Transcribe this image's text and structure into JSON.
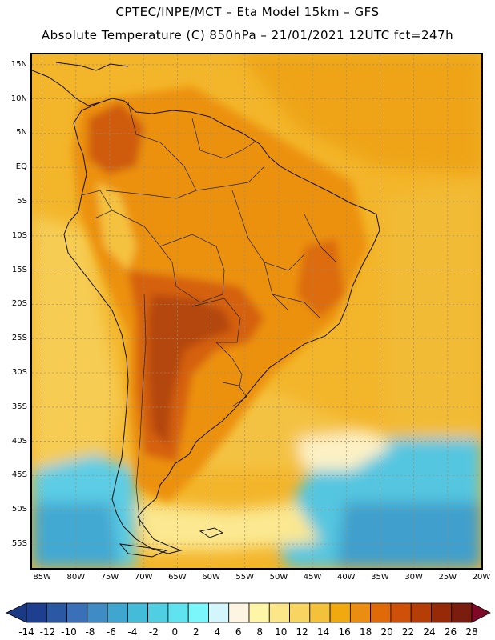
{
  "header": {
    "title_line1": "CPTEC/INPE/MCT –  Eta Model 15km – GFS",
    "title_line2": "Absolute Temperature (C) 850hPa – 21/01/2021 12UTC fct=247h"
  },
  "map": {
    "region": "South America",
    "lat_range": [
      -58.5,
      16.5
    ],
    "lon_range": [
      -86.5,
      -20
    ],
    "lat_ticks": [
      {
        "value": 15,
        "label": "15N"
      },
      {
        "value": 10,
        "label": "10N"
      },
      {
        "value": 5,
        "label": "5N"
      },
      {
        "value": 0,
        "label": "EQ"
      },
      {
        "value": -5,
        "label": "5S"
      },
      {
        "value": -10,
        "label": "10S"
      },
      {
        "value": -15,
        "label": "15S"
      },
      {
        "value": -20,
        "label": "20S"
      },
      {
        "value": -25,
        "label": "25S"
      },
      {
        "value": -30,
        "label": "30S"
      },
      {
        "value": -35,
        "label": "35S"
      },
      {
        "value": -40,
        "label": "40S"
      },
      {
        "value": -45,
        "label": "45S"
      },
      {
        "value": -50,
        "label": "50S"
      },
      {
        "value": -55,
        "label": "55S"
      }
    ],
    "lon_ticks": [
      {
        "value": -85,
        "label": "85W"
      },
      {
        "value": -80,
        "label": "80W"
      },
      {
        "value": -75,
        "label": "75W"
      },
      {
        "value": -70,
        "label": "70W"
      },
      {
        "value": -65,
        "label": "65W"
      },
      {
        "value": -60,
        "label": "60W"
      },
      {
        "value": -55,
        "label": "55W"
      },
      {
        "value": -50,
        "label": "50W"
      },
      {
        "value": -45,
        "label": "45W"
      },
      {
        "value": -40,
        "label": "40W"
      },
      {
        "value": -35,
        "label": "35W"
      },
      {
        "value": -30,
        "label": "30W"
      },
      {
        "value": -25,
        "label": "25W"
      },
      {
        "value": -20,
        "label": "20W"
      }
    ]
  },
  "colorbar": {
    "levels": [
      -14,
      -12,
      -10,
      -8,
      -6,
      -4,
      -2,
      0,
      2,
      4,
      6,
      8,
      10,
      12,
      14,
      16,
      18,
      20,
      22,
      24,
      26,
      28
    ],
    "labels": [
      "-14",
      "-12",
      "-10",
      "-8",
      "-6",
      "-4",
      "-2",
      "0",
      "2",
      "4",
      "6",
      "8",
      "10",
      "12",
      "14",
      "16",
      "18",
      "20",
      "22",
      "24",
      "26",
      "28"
    ],
    "colors": [
      "#1e3f8f",
      "#2b58a3",
      "#3a70b8",
      "#3f8cc4",
      "#3ea6cf",
      "#44bbd8",
      "#50cfe2",
      "#5fe3ee",
      "#7af7fa",
      "#d2f6fb",
      "#fdf5e1",
      "#fdf6a6",
      "#fbe788",
      "#f7d560",
      "#f3c23a",
      "#f0a90e",
      "#eb8d10",
      "#e06a08",
      "#cf5008",
      "#b53e06",
      "#962a06",
      "#7a1d0f"
    ],
    "under_color": "#1a3a85",
    "over_color": "#7f0a27"
  }
}
